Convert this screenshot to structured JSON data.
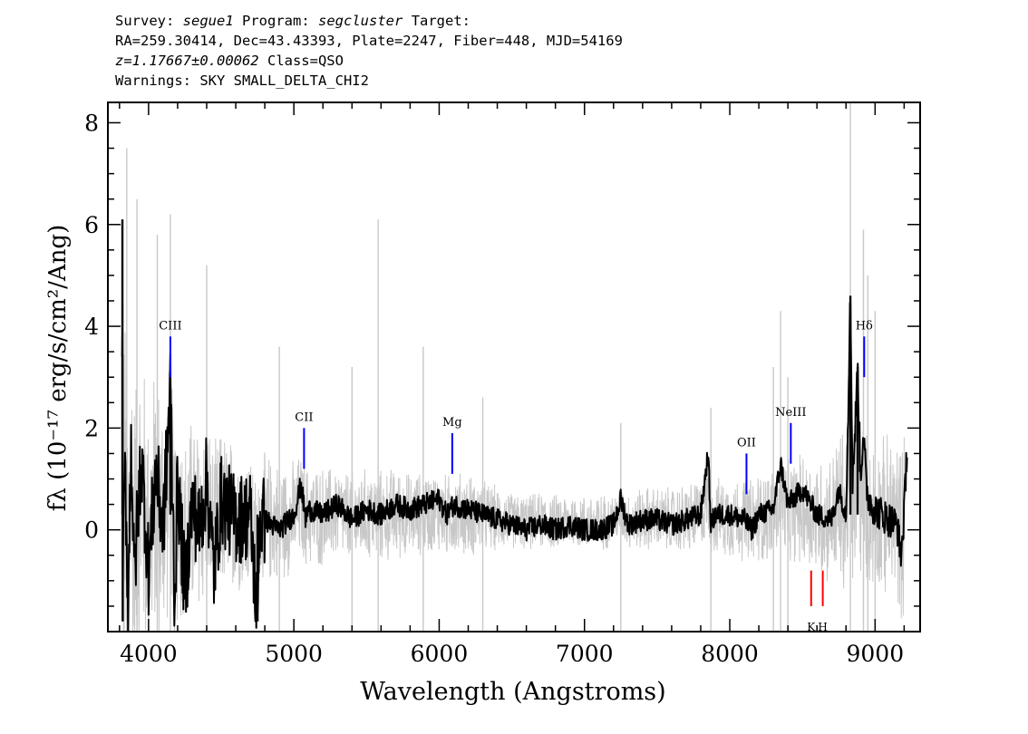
{
  "header": {
    "survey_label": "Survey:",
    "survey": "segue1",
    "program_label": "Program:",
    "program": "segcluster",
    "target_label": "Target:",
    "line2": "RA=259.30414, Dec=43.43393, Plate=2247, Fiber=448, MJD=54169",
    "redshift": "z=1.17667±0.00062",
    "class": "Class=QSO",
    "warnings": "Warnings: SKY SMALL_DELTA_CHI2"
  },
  "chart_data": {
    "type": "line",
    "xlabel": "Wavelength (Angstroms)",
    "ylabel": "fλ (10⁻¹⁷ erg/s/cm²/Ang)",
    "xlim": [
      3720,
      9310
    ],
    "ylim": [
      -2.0,
      8.4
    ],
    "x_ticks": [
      4000,
      5000,
      6000,
      7000,
      8000,
      9000
    ],
    "y_ticks": [
      0,
      2,
      4,
      6,
      8
    ],
    "series": [
      {
        "role": "noise",
        "color": "#c8c8c8",
        "x": [
          3810,
          3850,
          3900,
          3950,
          4000,
          4050,
          4100,
          4150,
          4200,
          4250,
          4300,
          4400,
          4500,
          4600,
          4700,
          4800,
          4900,
          5000,
          5100,
          5200,
          5300,
          5400,
          5500,
          5600,
          5700,
          5800,
          5900,
          6000,
          6100,
          6200,
          6300,
          6400,
          6500,
          6600,
          6700,
          6800,
          6900,
          7000,
          7100,
          7200,
          7300,
          7400,
          7500,
          7600,
          7700,
          7800,
          7900,
          8000,
          8100,
          8200,
          8300,
          8400,
          8500,
          8600,
          8700,
          8800,
          8830,
          8850,
          8900,
          9000,
          9100,
          9200
        ],
        "values": [
          5.0,
          4.0,
          3.5,
          3.3,
          3.0,
          3.0,
          2.8,
          2.6,
          2.4,
          2.3,
          2.2,
          2.0,
          1.8,
          1.6,
          1.5,
          1.4,
          1.3,
          1.2,
          1.1,
          1.1,
          1.0,
          1.0,
          1.0,
          1.0,
          1.0,
          0.9,
          0.9,
          0.9,
          0.9,
          0.9,
          0.8,
          0.7,
          0.6,
          0.6,
          0.6,
          0.6,
          0.6,
          0.6,
          0.6,
          0.6,
          0.6,
          0.7,
          0.7,
          0.7,
          0.8,
          0.8,
          0.8,
          0.9,
          0.9,
          1.0,
          1.0,
          1.1,
          1.2,
          1.3,
          1.4,
          2.0,
          3.0,
          2.0,
          1.6,
          1.6,
          1.8,
          2.0
        ],
        "spikes": [
          [
            3850,
            7.5
          ],
          [
            3920,
            6.5
          ],
          [
            4060,
            5.8
          ],
          [
            4150,
            6.2
          ],
          [
            4400,
            5.2
          ],
          [
            4900,
            3.6
          ],
          [
            5400,
            3.2
          ],
          [
            5580,
            6.1
          ],
          [
            5890,
            3.6
          ],
          [
            6300,
            2.6
          ],
          [
            7250,
            2.1
          ],
          [
            7870,
            2.4
          ],
          [
            8300,
            3.2
          ],
          [
            8350,
            4.3
          ],
          [
            8400,
            3.0
          ],
          [
            8830,
            8.4
          ],
          [
            8920,
            5.9
          ],
          [
            8950,
            5.0
          ],
          [
            9000,
            4.3
          ]
        ]
      },
      {
        "role": "flux",
        "color": "#000000",
        "x": [
          3820,
          3822,
          3830,
          3840,
          3860,
          3880,
          3900,
          3950,
          4000,
          4050,
          4100,
          4150,
          4180,
          4200,
          4250,
          4300,
          4350,
          4400,
          4450,
          4500,
          4600,
          4700,
          4750,
          4760,
          4800,
          4900,
          5000,
          5050,
          5080,
          5100,
          5200,
          5300,
          5400,
          5500,
          5600,
          5700,
          5800,
          5900,
          6000,
          6050,
          6100,
          6200,
          6300,
          6400,
          6500,
          6600,
          6700,
          6800,
          6900,
          7000,
          7100,
          7200,
          7250,
          7300,
          7400,
          7500,
          7600,
          7700,
          7800,
          7850,
          7870,
          7900,
          8000,
          8100,
          8150,
          8200,
          8300,
          8350,
          8400,
          8500,
          8600,
          8700,
          8750,
          8800,
          8830,
          8845,
          8860,
          8880,
          8900,
          8920,
          8940,
          8960,
          9000,
          9050,
          9100,
          9150,
          9180,
          9200,
          9220
        ],
        "values": [
          6.1,
          -1.8,
          0.5,
          1.0,
          -1.5,
          2.0,
          -1.0,
          1.5,
          -0.8,
          1.2,
          0.0,
          2.8,
          -1.5,
          1.0,
          -1.2,
          0.5,
          0.0,
          1.0,
          -0.8,
          0.6,
          0.2,
          0.3,
          -1.8,
          0.1,
          0.2,
          0.0,
          0.3,
          0.9,
          0.2,
          0.4,
          0.3,
          0.5,
          0.2,
          0.4,
          0.3,
          0.5,
          0.4,
          0.5,
          0.6,
          0.3,
          0.5,
          0.4,
          0.3,
          0.2,
          0.1,
          0.0,
          0.1,
          0.0,
          0.1,
          0.0,
          0.0,
          0.1,
          0.6,
          0.1,
          0.2,
          0.2,
          0.1,
          0.2,
          0.3,
          1.5,
          0.1,
          0.3,
          0.3,
          0.2,
          0.0,
          0.3,
          0.4,
          1.3,
          0.5,
          0.8,
          0.3,
          0.2,
          0.8,
          0.3,
          4.6,
          1.0,
          1.8,
          3.2,
          1.0,
          2.0,
          0.8,
          0.6,
          0.4,
          0.3,
          0.2,
          0.1,
          -0.5,
          0.3,
          1.7
        ]
      }
    ],
    "line_markers": [
      {
        "label": "CIII",
        "x": 4150,
        "color": "#0000ff",
        "y_bottom": 3.0,
        "y_top": 3.8
      },
      {
        "label": "CII",
        "x": 5070,
        "color": "#0000ff",
        "y_bottom": 1.2,
        "y_top": 2.0
      },
      {
        "label": "Mg",
        "x": 6090,
        "color": "#0000ff",
        "y_bottom": 1.1,
        "y_top": 1.9
      },
      {
        "label": "OII",
        "x": 8115,
        "color": "#0000ff",
        "y_bottom": 0.7,
        "y_top": 1.5
      },
      {
        "label": "NeIII",
        "x": 8420,
        "color": "#0000ff",
        "y_bottom": 1.3,
        "y_top": 2.1
      },
      {
        "label": "Hδ",
        "x": 8925,
        "color": "#0000ff",
        "y_bottom": 3.0,
        "y_top": 3.8
      },
      {
        "label": "K",
        "x": 8560,
        "color": "#ff0000",
        "y_bottom": -1.5,
        "y_top": -0.8
      },
      {
        "label": "H",
        "x": 8640,
        "color": "#ff0000",
        "y_bottom": -1.5,
        "y_top": -0.8
      }
    ]
  }
}
